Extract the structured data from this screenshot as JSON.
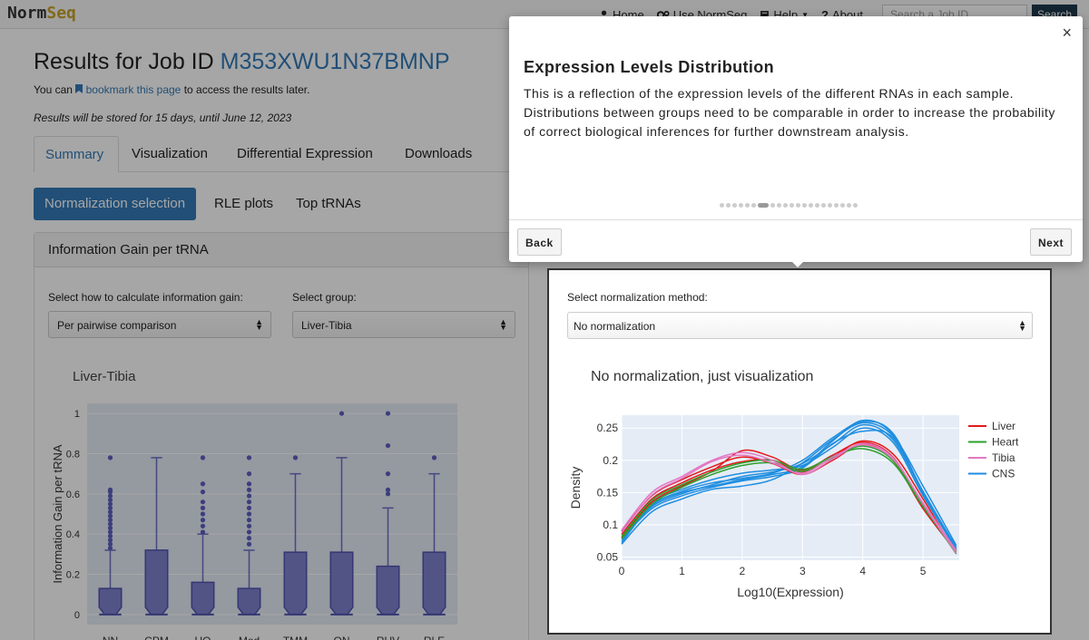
{
  "navbar": {
    "brand_a": "Norm",
    "brand_b": "Seq",
    "links": [
      {
        "label": "Home",
        "icon": "user-icon"
      },
      {
        "label": "Use NormSeq",
        "icon": "gears-icon"
      },
      {
        "label": "Help",
        "icon": "book-icon"
      },
      {
        "label": "About",
        "icon": "question-icon"
      }
    ],
    "search_placeholder": "Search a Job ID",
    "search_button": "Search"
  },
  "header": {
    "title_prefix": "Results for Job ID",
    "job_id": "M353XWU1N37BMNP",
    "bookmark_pre": "You can",
    "bookmark_link": "bookmark this page",
    "bookmark_post": "to access the results later.",
    "storage_note": "Results will be stored for 15 days, until June 12, 2023"
  },
  "tabs": [
    "Summary",
    "Visualization",
    "Differential Expression",
    "Downloads"
  ],
  "pills": [
    "Normalization selection",
    "RLE plots",
    "Top tRNAs"
  ],
  "left_panel": {
    "heading": "Information Gain per tRNA",
    "calc_label": "Select how to calculate information gain:",
    "calc_value": "Per pairwise comparison",
    "group_label": "Select group:",
    "group_value": "Liver-Tibia"
  },
  "right_panel": {
    "method_label": "Select normalization method:",
    "method_value": "No normalization"
  },
  "popover": {
    "title": "Expression Levels Distribution",
    "body": "This is a reflection of the expression levels of the different RNAs in each sample. Distributions between groups need to be comparable in order to increase the probability of correct biological inferences for further downstream analysis.",
    "close": "×",
    "back": "Back",
    "next": "Next",
    "steps_total": 21,
    "step_current": 7
  },
  "chart_data": [
    {
      "type": "box",
      "title": "Liver-Tibia",
      "xlabel": "",
      "ylabel": "Information Gain per tRNA",
      "ylim": [
        -0.05,
        1.05
      ],
      "yticks": [
        0,
        0.2,
        0.4,
        0.6,
        0.8,
        1
      ],
      "ytick_labels": [
        "0",
        "0.2",
        "0.4",
        "0.6",
        "0.8",
        "1"
      ],
      "color": "#6b6fc4",
      "categories": [
        "NN",
        "CPM",
        "UQ",
        "Med",
        "TMM",
        "QN",
        "RUV",
        "RLE"
      ],
      "boxes": [
        {
          "q1": 0,
          "median": 0,
          "q3": 0.13,
          "upper": 0.32,
          "outliers": [
            0.33,
            0.35,
            0.37,
            0.39,
            0.41,
            0.43,
            0.45,
            0.47,
            0.49,
            0.51,
            0.53,
            0.55,
            0.57,
            0.59,
            0.61,
            0.62,
            0.78
          ]
        },
        {
          "q1": 0,
          "median": 0,
          "q3": 0.32,
          "upper": 0.78,
          "outliers": []
        },
        {
          "q1": 0,
          "median": 0,
          "q3": 0.16,
          "upper": 0.4,
          "outliers": [
            0.41,
            0.44,
            0.47,
            0.5,
            0.53,
            0.56,
            0.61,
            0.65,
            0.78
          ]
        },
        {
          "q1": 0,
          "median": 0,
          "q3": 0.13,
          "upper": 0.32,
          "outliers": [
            0.35,
            0.38,
            0.41,
            0.44,
            0.47,
            0.5,
            0.53,
            0.56,
            0.59,
            0.62,
            0.65,
            0.7,
            0.78
          ]
        },
        {
          "q1": 0,
          "median": 0,
          "q3": 0.31,
          "upper": 0.7,
          "outliers": [
            0.78
          ]
        },
        {
          "q1": 0,
          "median": 0,
          "q3": 0.31,
          "upper": 0.78,
          "outliers": [
            1.0
          ]
        },
        {
          "q1": 0,
          "median": 0,
          "q3": 0.24,
          "upper": 0.53,
          "outliers": [
            0.6,
            0.62,
            0.7,
            0.84,
            1.0
          ]
        },
        {
          "q1": 0,
          "median": 0,
          "q3": 0.31,
          "upper": 0.7,
          "outliers": [
            0.78
          ]
        }
      ]
    },
    {
      "type": "line",
      "title": "No normalization, just visualization",
      "xlabel": "Log10(Expression)",
      "ylabel": "Density",
      "xlim": [
        0,
        5.6
      ],
      "ylim": [
        0.045,
        0.27
      ],
      "xticks": [
        0,
        1,
        2,
        3,
        4,
        5
      ],
      "yticks": [
        0.05,
        0.1,
        0.15,
        0.2,
        0.25
      ],
      "ytick_labels": [
        "0.05",
        "0.1",
        "0.15",
        "0.2",
        "0.25"
      ],
      "legend_position": "right",
      "x": [
        0,
        0.5,
        1,
        1.5,
        2,
        2.5,
        3,
        3.5,
        4,
        4.5,
        5,
        5.55
      ],
      "series": [
        {
          "name": "Liver",
          "color": "#e41a1c",
          "curves": [
            [
              0.085,
              0.14,
              0.165,
              0.185,
              0.198,
              0.2,
              0.182,
              0.205,
              0.23,
              0.21,
              0.14,
              0.055
            ],
            [
              0.08,
              0.135,
              0.16,
              0.183,
              0.215,
              0.205,
              0.185,
              0.208,
              0.228,
              0.205,
              0.13,
              0.06
            ],
            [
              0.09,
              0.145,
              0.17,
              0.19,
              0.205,
              0.195,
              0.178,
              0.2,
              0.225,
              0.2,
              0.125,
              0.058
            ]
          ]
        },
        {
          "name": "Heart",
          "color": "#2ca02c",
          "curves": [
            [
              0.078,
              0.132,
              0.158,
              0.178,
              0.192,
              0.196,
              0.183,
              0.204,
              0.222,
              0.2,
              0.13,
              0.055
            ],
            [
              0.082,
              0.138,
              0.162,
              0.182,
              0.196,
              0.2,
              0.186,
              0.206,
              0.218,
              0.196,
              0.128,
              0.058
            ]
          ]
        },
        {
          "name": "Tibia",
          "color": "#e377c2",
          "curves": [
            [
              0.092,
              0.15,
              0.175,
              0.2,
              0.212,
              0.2,
              0.178,
              0.202,
              0.226,
              0.204,
              0.132,
              0.056
            ],
            [
              0.088,
              0.146,
              0.172,
              0.198,
              0.208,
              0.196,
              0.18,
              0.205,
              0.224,
              0.202,
              0.134,
              0.06
            ]
          ]
        },
        {
          "name": "CNS",
          "color": "#1f8ee0",
          "curves": [
            [
              0.075,
              0.13,
              0.15,
              0.16,
              0.17,
              0.178,
              0.19,
              0.23,
              0.262,
              0.24,
              0.15,
              0.06
            ],
            [
              0.08,
              0.128,
              0.148,
              0.162,
              0.175,
              0.182,
              0.195,
              0.225,
              0.255,
              0.232,
              0.15,
              0.065
            ],
            [
              0.07,
              0.12,
              0.14,
              0.155,
              0.16,
              0.17,
              0.196,
              0.232,
              0.258,
              0.238,
              0.16,
              0.068
            ],
            [
              0.085,
              0.135,
              0.155,
              0.17,
              0.18,
              0.185,
              0.192,
              0.22,
              0.25,
              0.228,
              0.145,
              0.062
            ],
            [
              0.078,
              0.125,
              0.145,
              0.158,
              0.168,
              0.175,
              0.188,
              0.226,
              0.245,
              0.235,
              0.152,
              0.064
            ],
            [
              0.072,
              0.13,
              0.152,
              0.165,
              0.172,
              0.18,
              0.2,
              0.235,
              0.26,
              0.242,
              0.148,
              0.061
            ]
          ]
        }
      ]
    }
  ]
}
